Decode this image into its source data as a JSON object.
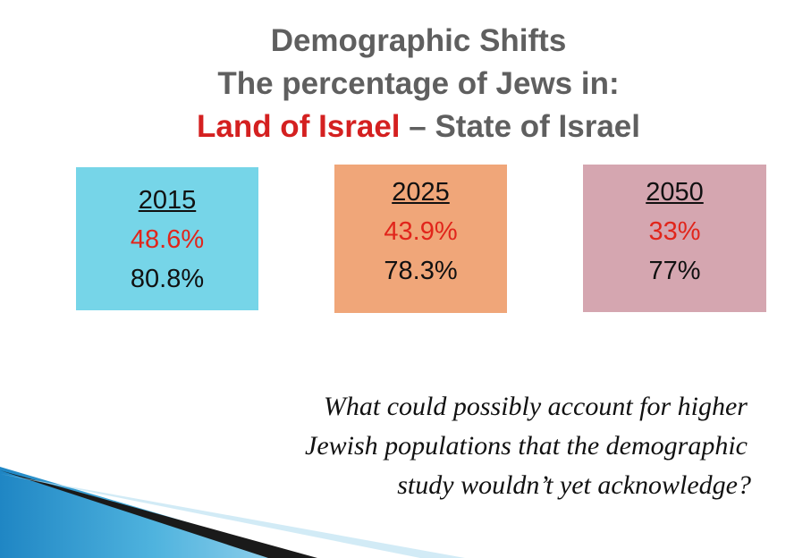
{
  "title": {
    "line1": "Demographic Shifts",
    "line2": "The percentage of Jews in:",
    "line3_red": "Land of Israel",
    "line3_rest": " – State of Israel"
  },
  "boxes": [
    {
      "year": "2015",
      "land": "48.6%",
      "state": "80.8%",
      "color": "#76d5e8"
    },
    {
      "year": "2025",
      "land": "43.9%",
      "state": "78.3%",
      "color": "#f0a679"
    },
    {
      "year": "2050",
      "land": "33%",
      "state": "77%",
      "color": "#d5a6b0"
    }
  ],
  "question": {
    "line1": "What could possibly account for higher",
    "line2": "Jewish populations that the demographic",
    "line3": "study wouldn’t yet acknowledge?"
  },
  "colors": {
    "title_gray": "#5f5f5f",
    "title_red": "#d42020",
    "land_red": "#e1251b",
    "wedge_blue": "#2a8fc8"
  }
}
